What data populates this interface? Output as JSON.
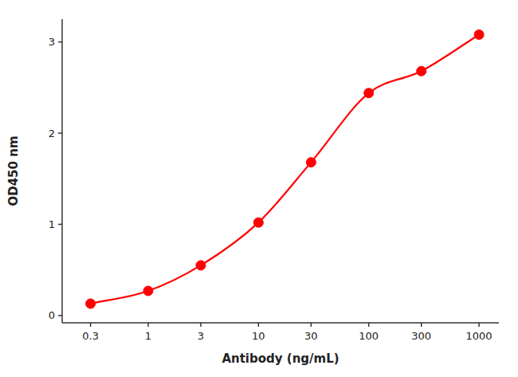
{
  "chart_data": {
    "type": "line",
    "x": [
      0.3,
      1,
      3,
      10,
      30,
      100,
      300,
      1000
    ],
    "values": [
      0.13,
      0.27,
      0.55,
      1.02,
      1.68,
      2.44,
      2.68,
      3.08
    ],
    "color": "#FF0000",
    "marker": "circle",
    "line_style": "solid",
    "log": "x",
    "xlabel": "Antibody (ng/mL)",
    "ylabel": "OD450 nm",
    "xlim": [
      0.1659586907437562,
      1513.5612484362082
    ],
    "ylim": [
      -0.08,
      3.25
    ],
    "xticks": [
      0.3,
      1,
      3,
      10,
      30,
      100,
      300,
      1000
    ],
    "yticks": [
      0,
      1,
      2,
      3
    ]
  }
}
